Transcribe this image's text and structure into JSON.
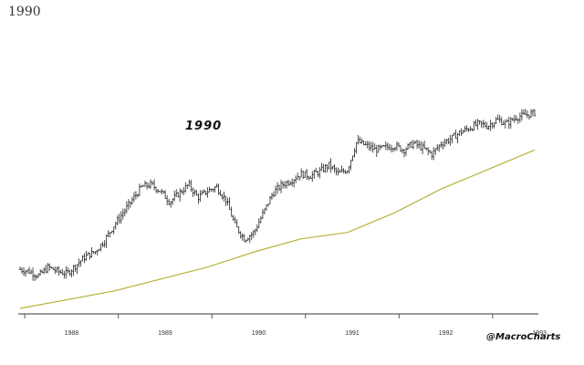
{
  "title": "1990",
  "credit": "@MacroCharts",
  "chart_data": {
    "type": "line",
    "annotation": "1990",
    "x_ticks": [
      "1988",
      "1989",
      "1990",
      "1991",
      "1992",
      "1993"
    ],
    "x_range": [
      1987.95,
      1993.45
    ],
    "y_range": [
      0,
      100
    ],
    "grid": false,
    "series": [
      {
        "style": "ohlc-bars",
        "color": "#222222",
        "x": [
          1987.95,
          1988.05,
          1988.15,
          1988.25,
          1988.35,
          1988.45,
          1988.55,
          1988.65,
          1988.75,
          1988.85,
          1988.95,
          1989.05,
          1989.15,
          1989.25,
          1989.35,
          1989.45,
          1989.55,
          1989.65,
          1989.75,
          1989.85,
          1989.95,
          1990.05,
          1990.15,
          1990.25,
          1990.35,
          1990.45,
          1990.55,
          1990.65,
          1990.75,
          1990.85,
          1990.95,
          1991.05,
          1991.15,
          1991.25,
          1991.35,
          1991.45,
          1991.55,
          1991.65,
          1991.75,
          1991.85,
          1991.95,
          1992.05,
          1992.15,
          1992.25,
          1992.35,
          1992.45,
          1992.55,
          1992.65,
          1992.75,
          1992.85,
          1992.95,
          1993.05,
          1993.15,
          1993.25,
          1993.35,
          1993.45
        ],
        "values": [
          18,
          17,
          15,
          19,
          17,
          16,
          20,
          24,
          26,
          31,
          38,
          44,
          50,
          56,
          57,
          54,
          49,
          53,
          57,
          51,
          54,
          56,
          50,
          38,
          32,
          35,
          44,
          53,
          57,
          59,
          62,
          61,
          63,
          66,
          62,
          64,
          77,
          75,
          73,
          74,
          75,
          73,
          76,
          74,
          71,
          76,
          78,
          81,
          83,
          85,
          84,
          87,
          85,
          88,
          89,
          90
        ]
      },
      {
        "style": "line",
        "color": "#b8b23a",
        "x": [
          1987.95,
          1988.95,
          1989.95,
          1990.45,
          1990.95,
          1991.45,
          1991.95,
          1992.45,
          1992.95,
          1993.45
        ],
        "values": [
          0,
          8,
          19,
          26,
          32,
          35,
          44,
          55,
          64,
          73
        ]
      }
    ]
  }
}
